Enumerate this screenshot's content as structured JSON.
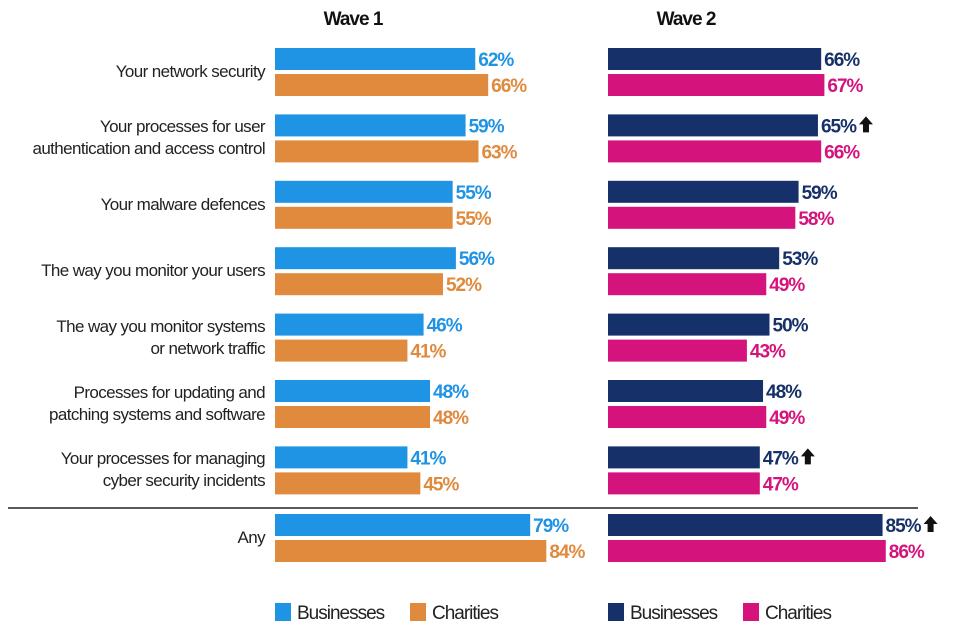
{
  "chart_data": {
    "type": "bar",
    "orientation": "horizontal",
    "xlim": [
      0,
      100
    ],
    "categories": [
      "Your network security",
      "Your processes for user\nauthentication and access control",
      "Your malware defences",
      "The way you monitor your users",
      "The way you monitor systems\nor network traffic",
      "Processes for updating and\npatching systems and software",
      "Your processes for managing\ncyber security incidents",
      "Any"
    ],
    "panels": [
      {
        "title": "Wave 1",
        "series": [
          {
            "name": "Businesses",
            "color": "#1f93e4",
            "values": [
              62,
              59,
              55,
              56,
              46,
              48,
              41,
              79
            ],
            "value_labels": [
              "62%",
              "59%",
              "55%",
              "56%",
              "46%",
              "48%",
              "41%",
              "79%"
            ]
          },
          {
            "name": "Charities",
            "color": "#e08a3e",
            "values": [
              66,
              63,
              55,
              52,
              41,
              48,
              45,
              84
            ],
            "value_labels": [
              "66%",
              "63%",
              "55%",
              "52%",
              "41%",
              "48%",
              "45%",
              "84%"
            ]
          }
        ]
      },
      {
        "title": "Wave 2",
        "series": [
          {
            "name": "Businesses",
            "color": "#16306a",
            "values": [
              66,
              65,
              59,
              53,
              50,
              48,
              47,
              85
            ],
            "value_labels": [
              "66%",
              "65%",
              "59%",
              "53%",
              "50%",
              "48%",
              "47%",
              "85%"
            ],
            "significant_increase": [
              false,
              true,
              false,
              false,
              false,
              false,
              true,
              true
            ]
          },
          {
            "name": "Charities",
            "color": "#d4137c",
            "values": [
              67,
              66,
              58,
              49,
              43,
              49,
              47,
              86
            ],
            "value_labels": [
              "67%",
              "66%",
              "58%",
              "49%",
              "43%",
              "49%",
              "47%",
              "86%"
            ]
          }
        ]
      }
    ]
  }
}
